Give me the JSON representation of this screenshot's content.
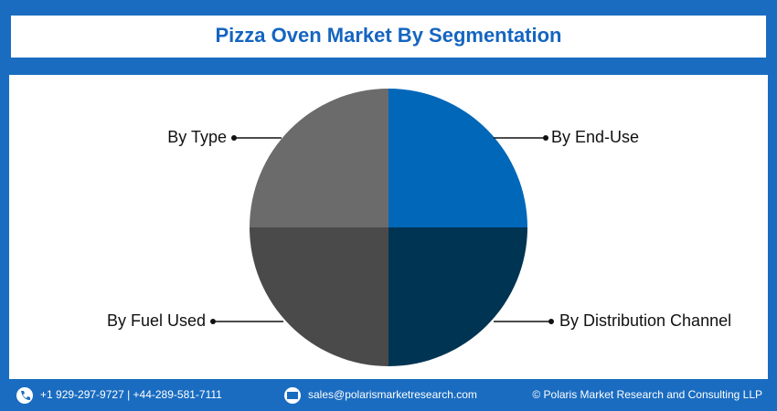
{
  "chart_data": {
    "type": "pie",
    "title": "Pizza Oven Market By Segmentation",
    "categories": [
      "By End-Use",
      "By Distribution Channel",
      "By Fuel Used",
      "By Type"
    ],
    "values": [
      25,
      25,
      25,
      25
    ],
    "colors": [
      "#0067b9",
      "#003453",
      "#4a4a4a",
      "#6b6b6b"
    ]
  },
  "footer": {
    "phone": "+1 929-297-9727 | +44-289-581-7111",
    "email": "sales@polarismarketresearch.com",
    "copyright": "© Polaris Market Research and Consulting LLP"
  }
}
